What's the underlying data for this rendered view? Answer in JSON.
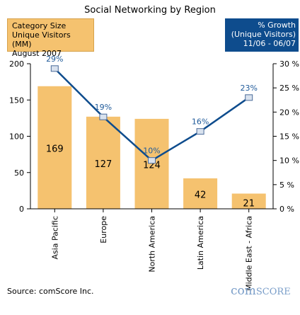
{
  "chart_data": {
    "type": "bar",
    "title": "Social Networking by Region",
    "categories": [
      "Asia Pacific",
      "Europe",
      "North America",
      "Latin America",
      "Middle East - Africa"
    ],
    "series": [
      {
        "name": "Category Size Unique Visitors (MM) August 2007",
        "type": "bar",
        "axis": "left",
        "values": [
          169,
          127,
          124,
          42,
          21
        ],
        "labels": [
          "169",
          "127",
          "124",
          "42",
          "21"
        ],
        "color": "#f5c26f"
      },
      {
        "name": "% Growth (Unique Visitors) 11/06 - 06/07",
        "type": "line",
        "axis": "right",
        "values": [
          29,
          19,
          10,
          16,
          23
        ],
        "labels": [
          "29%",
          "19%",
          "10%",
          "16%",
          "23%"
        ],
        "color": "#0e4c8d"
      }
    ],
    "y_left": {
      "ylim": [
        0,
        200
      ],
      "ticks": [
        "0",
        "50",
        "100",
        "150",
        "200"
      ]
    },
    "y_right": {
      "ylim": [
        0,
        30
      ],
      "ticks": [
        "0 %",
        "5 %",
        "10 %",
        "15 %",
        "20 %",
        "25 %",
        "30 %"
      ]
    },
    "grid": false
  },
  "legend": {
    "left_lines": [
      "Category Size",
      "Unique Visitors (MM)",
      "August 2007"
    ],
    "right_lines": [
      "% Growth",
      "(Unique Visitors)",
      "11/06 - 06/07"
    ]
  },
  "source": "Source: comScore Inc.",
  "logo": {
    "part1": "com",
    "part2": "SCORE"
  }
}
